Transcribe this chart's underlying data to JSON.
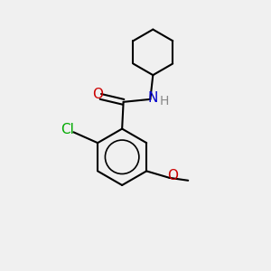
{
  "background_color": "#f0f0f0",
  "bond_color": "#000000",
  "bond_width": 1.5,
  "atom_colors": {
    "C": "#000000",
    "N": "#0000cc",
    "O": "#cc0000",
    "Cl": "#00aa00",
    "H": "#666666"
  },
  "figsize": [
    3.0,
    3.0
  ],
  "dpi": 100
}
